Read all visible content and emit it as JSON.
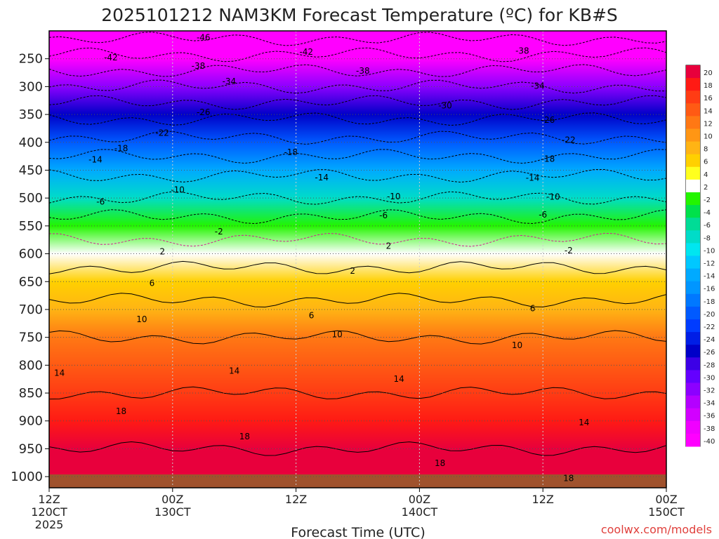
{
  "chart_data": {
    "type": "heatmap",
    "title": "2025101212 NAM3KM Forecast Temperature (ºC) for KB#S",
    "xlabel": "Forecast Time (UTC)",
    "ylabel": "",
    "x_ticks": [
      {
        "top": "12Z",
        "mid": "120CT",
        "bottom": "2025",
        "hour": 0
      },
      {
        "top": "00Z",
        "mid": "130CT",
        "bottom": "",
        "hour": 12
      },
      {
        "top": "12Z",
        "mid": "",
        "bottom": "",
        "hour": 24
      },
      {
        "top": "00Z",
        "mid": "140CT",
        "bottom": "",
        "hour": 36
      },
      {
        "top": "12Z",
        "mid": "",
        "bottom": "",
        "hour": 48
      },
      {
        "top": "00Z",
        "mid": "150CT",
        "bottom": "",
        "hour": 60
      }
    ],
    "xlim": [
      0,
      60
    ],
    "y_ticks": [
      250,
      300,
      350,
      400,
      450,
      500,
      550,
      600,
      650,
      700,
      750,
      800,
      850,
      900,
      950,
      1000
    ],
    "ylim": [
      1020,
      200
    ],
    "colorbar": {
      "labels": [
        "20",
        "18",
        "16",
        "14",
        "12",
        "10",
        "8",
        "6",
        "4",
        "2",
        "-2",
        "-4",
        "-6",
        "-8",
        "-10",
        "-12",
        "-14",
        "-16",
        "-18",
        "-20",
        "-22",
        "-24",
        "-26",
        "-28",
        "-30",
        "-32",
        "-34",
        "-36",
        "-38",
        "-40"
      ],
      "colors": [
        "#e8003c",
        "#ff1a14",
        "#ff3c14",
        "#ff5a14",
        "#ff7814",
        "#ff9614",
        "#ffb414",
        "#ffd000",
        "#ffff1e",
        "#ffffff",
        "#23f500",
        "#00e14b",
        "#00dc96",
        "#00dcc8",
        "#00e6f0",
        "#00c8ff",
        "#00aaff",
        "#0096ff",
        "#0078ff",
        "#005aff",
        "#003cff",
        "#001ee6",
        "#0000c8",
        "#3c00e6",
        "#6400ff",
        "#8c00ff",
        "#b400ff",
        "#d200ff",
        "#f000ff",
        "#ff00ff"
      ]
    },
    "temperature_profile": [
      {
        "pressure": 1000,
        "temp": 20
      },
      {
        "pressure": 950,
        "temp": 18
      },
      {
        "pressure": 900,
        "temp": 17
      },
      {
        "pressure": 850,
        "temp": 14
      },
      {
        "pressure": 800,
        "temp": 12
      },
      {
        "pressure": 750,
        "temp": 10
      },
      {
        "pressure": 700,
        "temp": 7
      },
      {
        "pressure": 650,
        "temp": 4
      },
      {
        "pressure": 600,
        "temp": 0
      },
      {
        "pressure": 550,
        "temp": -4
      },
      {
        "pressure": 500,
        "temp": -10
      },
      {
        "pressure": 450,
        "temp": -15
      },
      {
        "pressure": 400,
        "temp": -21
      },
      {
        "pressure": 350,
        "temp": -27
      },
      {
        "pressure": 300,
        "temp": -34
      },
      {
        "pressure": 250,
        "temp": -41
      },
      {
        "pressure": 200,
        "temp": -48
      }
    ],
    "contour_labels": [
      {
        "text": "-46",
        "hour": 15,
        "pressure": 212
      },
      {
        "text": "-42",
        "hour": 6,
        "pressure": 248
      },
      {
        "text": "-42",
        "hour": 25,
        "pressure": 238
      },
      {
        "text": "-38",
        "hour": 46,
        "pressure": 236
      },
      {
        "text": "-38",
        "hour": 14.5,
        "pressure": 263
      },
      {
        "text": "-38",
        "hour": 30.5,
        "pressure": 272
      },
      {
        "text": "-34",
        "hour": 17.5,
        "pressure": 291
      },
      {
        "text": "-34",
        "hour": 47.5,
        "pressure": 299
      },
      {
        "text": "-30",
        "hour": 38.5,
        "pressure": 334
      },
      {
        "text": "-26",
        "hour": 15,
        "pressure": 346
      },
      {
        "text": "-26",
        "hour": 48.5,
        "pressure": 360
      },
      {
        "text": "-22",
        "hour": 11,
        "pressure": 383
      },
      {
        "text": "-22",
        "hour": 50.5,
        "pressure": 396
      },
      {
        "text": "-18",
        "hour": 7,
        "pressure": 411
      },
      {
        "text": "-18",
        "hour": 23.5,
        "pressure": 418
      },
      {
        "text": "-18",
        "hour": 48.5,
        "pressure": 430
      },
      {
        "text": "-14",
        "hour": 4.5,
        "pressure": 431
      },
      {
        "text": "-14",
        "hour": 26.5,
        "pressure": 463
      },
      {
        "text": "-14",
        "hour": 47,
        "pressure": 464
      },
      {
        "text": "-10",
        "hour": 12.5,
        "pressure": 485
      },
      {
        "text": "-10",
        "hour": 33.5,
        "pressure": 497
      },
      {
        "text": "-10",
        "hour": 49,
        "pressure": 498
      },
      {
        "text": "-6",
        "hour": 5,
        "pressure": 507
      },
      {
        "text": "-6",
        "hour": 32.5,
        "pressure": 531
      },
      {
        "text": "-6",
        "hour": 48,
        "pressure": 530
      },
      {
        "text": "-2",
        "hour": 16.5,
        "pressure": 560
      },
      {
        "text": "-2",
        "hour": 50.5,
        "pressure": 594
      },
      {
        "text": "2",
        "hour": 11,
        "pressure": 596
      },
      {
        "text": "2",
        "hour": 33,
        "pressure": 586
      },
      {
        "text": "2",
        "hour": 29.5,
        "pressure": 631
      },
      {
        "text": "6",
        "hour": 10,
        "pressure": 653
      },
      {
        "text": "6",
        "hour": 25.5,
        "pressure": 711
      },
      {
        "text": "6",
        "hour": 47,
        "pressure": 698
      },
      {
        "text": "10",
        "hour": 9,
        "pressure": 718
      },
      {
        "text": "10",
        "hour": 28,
        "pressure": 745
      },
      {
        "text": "10",
        "hour": 45.5,
        "pressure": 764
      },
      {
        "text": "14",
        "hour": 1,
        "pressure": 814
      },
      {
        "text": "14",
        "hour": 18,
        "pressure": 810
      },
      {
        "text": "14",
        "hour": 34,
        "pressure": 825
      },
      {
        "text": "14",
        "hour": 52,
        "pressure": 903
      },
      {
        "text": "18",
        "hour": 7,
        "pressure": 883
      },
      {
        "text": "18",
        "hour": 19,
        "pressure": 928
      },
      {
        "text": "18",
        "hour": 38,
        "pressure": 976
      },
      {
        "text": "18",
        "hour": 50.5,
        "pressure": 1003
      }
    ]
  },
  "footer": {
    "credit": "coolwx.com/models"
  }
}
